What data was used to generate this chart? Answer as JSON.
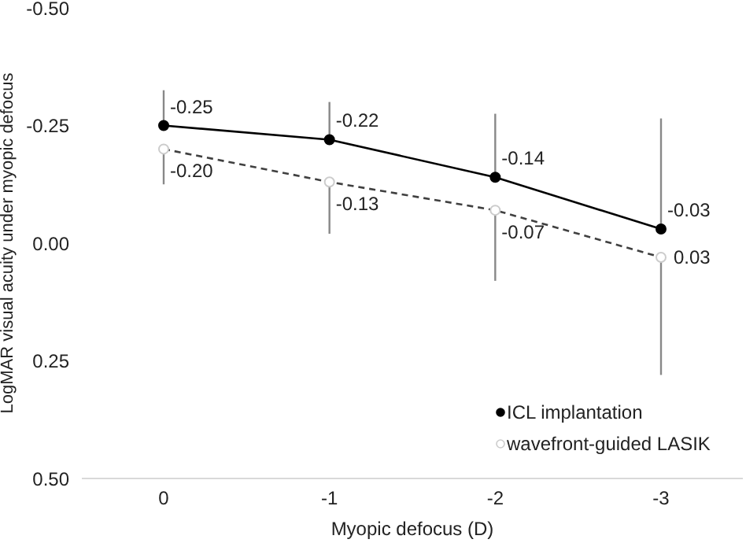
{
  "chart_data": {
    "type": "line",
    "xlabel": "Myopic defocus (D)",
    "ylabel": "LogMAR visual acuity under myopic defocus",
    "categories": [
      "0",
      "-1",
      "-2",
      "-3"
    ],
    "series": [
      {
        "name": "ICL implantation",
        "color": "#000000",
        "line_style": "solid",
        "values": [
          -0.25,
          -0.22,
          -0.14,
          -0.03
        ],
        "value_labels": [
          "-0.25",
          "-0.22",
          "-0.14",
          "-0.03"
        ],
        "errors": [
          [
            -0.325,
            -0.25
          ],
          [
            -0.3,
            -0.22
          ],
          [
            -0.275,
            -0.14
          ],
          [
            -0.265,
            -0.03
          ]
        ]
      },
      {
        "name": "wavefront-guided LASIK",
        "color": "#404040",
        "line_style": "dashed",
        "values": [
          -0.2,
          -0.13,
          -0.07,
          0.03
        ],
        "value_labels": [
          "-0.20",
          "-0.13",
          "-0.07",
          "0.03"
        ],
        "errors": [
          [
            -0.2,
            -0.125
          ],
          [
            -0.13,
            -0.02
          ],
          [
            -0.07,
            0.08
          ],
          [
            0.03,
            0.28
          ]
        ]
      }
    ],
    "ylim": [
      0.5,
      -0.5
    ],
    "yticks": [
      {
        "value": -0.5,
        "label": "-0.50"
      },
      {
        "value": -0.25,
        "label": "-0.25"
      },
      {
        "value": 0,
        "label": "0.00"
      },
      {
        "value": 0.25,
        "label": "0.25"
      },
      {
        "value": 0.5,
        "label": "0.50"
      }
    ],
    "grid": false,
    "legend": "bottom right",
    "marker": "circle"
  }
}
